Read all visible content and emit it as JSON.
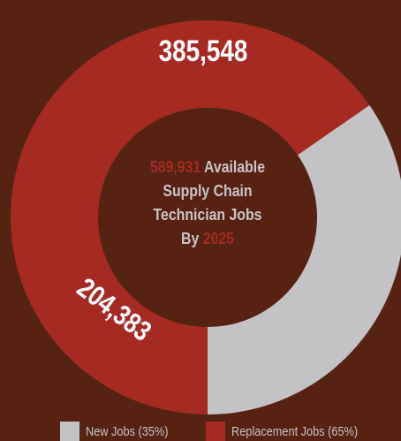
{
  "chart_data": {
    "type": "pie",
    "donut": true,
    "categories": [
      "New Jobs (35%)",
      "Replacement Jobs (65%)"
    ],
    "values": [
      204383,
      385548
    ],
    "value_labels": [
      "204,383",
      "385,548"
    ],
    "percentages": [
      35,
      65
    ],
    "colors": [
      "#c3c3c5",
      "#a42a22"
    ],
    "center_text": {
      "total": "589,931",
      "line1_rest": " Available",
      "line2": "Supply Chain",
      "line3": "Technician Jobs",
      "line4_prefix": "By ",
      "year": "2025"
    },
    "legend_placement": "bottom"
  },
  "colors": {
    "background": "#552214",
    "label_text": "#ffffff",
    "center_text": "#c9c4c6",
    "accent": "#a42a22"
  }
}
